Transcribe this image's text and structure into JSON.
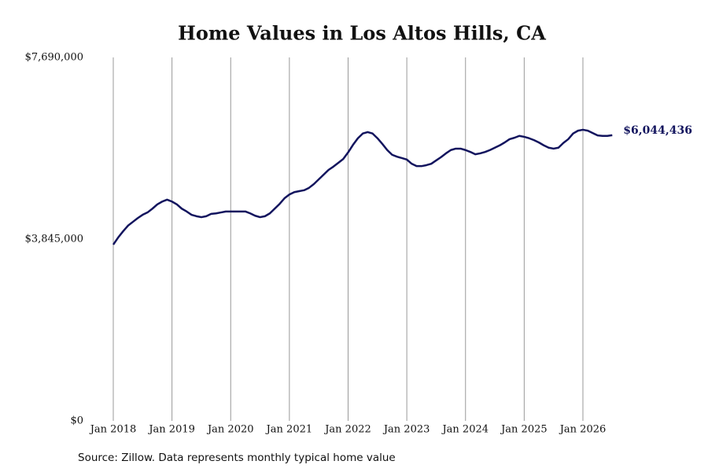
{
  "chart_data": {
    "type": "line",
    "title": "Home Values in Los Altos Hills, CA",
    "source": "Source: Zillow. Data represents monthly typical home value",
    "x": [
      "2018-01",
      "2018-02",
      "2018-03",
      "2018-04",
      "2018-05",
      "2018-06",
      "2018-07",
      "2018-08",
      "2018-09",
      "2018-10",
      "2018-11",
      "2018-12",
      "2019-01",
      "2019-02",
      "2019-03",
      "2019-04",
      "2019-05",
      "2019-06",
      "2019-07",
      "2019-08",
      "2019-09",
      "2019-10",
      "2019-11",
      "2019-12",
      "2020-01",
      "2020-02",
      "2020-03",
      "2020-04",
      "2020-05",
      "2020-06",
      "2020-07",
      "2020-08",
      "2020-09",
      "2020-10",
      "2020-11",
      "2020-12",
      "2021-01",
      "2021-02",
      "2021-03",
      "2021-04",
      "2021-05",
      "2021-06",
      "2021-07",
      "2021-08",
      "2021-09",
      "2021-10",
      "2021-11",
      "2021-12",
      "2022-01",
      "2022-02",
      "2022-03",
      "2022-04",
      "2022-05",
      "2022-06",
      "2022-07",
      "2022-08",
      "2022-09",
      "2022-10",
      "2022-11",
      "2022-12",
      "2023-01",
      "2023-02",
      "2023-03",
      "2023-04",
      "2023-05",
      "2023-06",
      "2023-07",
      "2023-08",
      "2023-09",
      "2023-10",
      "2023-11",
      "2023-12",
      "2024-01",
      "2024-02",
      "2024-03",
      "2024-04",
      "2024-05",
      "2024-06",
      "2024-07",
      "2024-08",
      "2024-09",
      "2024-10",
      "2024-11",
      "2024-12",
      "2025-01",
      "2025-02",
      "2025-03",
      "2025-04",
      "2025-05",
      "2025-06",
      "2025-07",
      "2025-08",
      "2025-09",
      "2025-10",
      "2025-11",
      "2025-12",
      "2026-01",
      "2026-02",
      "2026-03",
      "2026-04",
      "2026-05",
      "2026-06",
      "2026-07"
    ],
    "series": [
      {
        "name": "Home value",
        "color": "#12145e",
        "values": [
          3730000,
          3880000,
          4010000,
          4130000,
          4210000,
          4290000,
          4360000,
          4410000,
          4490000,
          4580000,
          4640000,
          4680000,
          4640000,
          4580000,
          4490000,
          4430000,
          4360000,
          4330000,
          4310000,
          4330000,
          4380000,
          4390000,
          4410000,
          4430000,
          4430000,
          4430000,
          4430000,
          4430000,
          4390000,
          4340000,
          4310000,
          4330000,
          4390000,
          4490000,
          4590000,
          4710000,
          4790000,
          4840000,
          4860000,
          4880000,
          4930000,
          5010000,
          5110000,
          5210000,
          5310000,
          5380000,
          5460000,
          5540000,
          5680000,
          5840000,
          5980000,
          6080000,
          6110000,
          6080000,
          5980000,
          5860000,
          5730000,
          5630000,
          5590000,
          5560000,
          5530000,
          5440000,
          5390000,
          5390000,
          5410000,
          5440000,
          5510000,
          5580000,
          5660000,
          5730000,
          5760000,
          5760000,
          5730000,
          5690000,
          5640000,
          5660000,
          5690000,
          5730000,
          5780000,
          5830000,
          5890000,
          5960000,
          5990000,
          6030000,
          6010000,
          5980000,
          5940000,
          5890000,
          5830000,
          5780000,
          5760000,
          5780000,
          5880000,
          5960000,
          6080000,
          6140000,
          6160000,
          6140000,
          6090000,
          6040000,
          6030000,
          6030000,
          6044436
        ],
        "value_labels": [
          null,
          null,
          null,
          null,
          null,
          null,
          null,
          null,
          null,
          null,
          null,
          null,
          null,
          null,
          null,
          null,
          null,
          null,
          null,
          null,
          null,
          null,
          null,
          null,
          null,
          null,
          null,
          null,
          null,
          null,
          null,
          null,
          null,
          null,
          null,
          null,
          null,
          null,
          null,
          null,
          null,
          null,
          null,
          null,
          null,
          null,
          null,
          null,
          null,
          null,
          null,
          null,
          null,
          null,
          null,
          null,
          null,
          null,
          null,
          null,
          null,
          null,
          null,
          null,
          null,
          null,
          null,
          null,
          null,
          null,
          null,
          null,
          null,
          null,
          null,
          null,
          null,
          null,
          null,
          null,
          null,
          null,
          null,
          null,
          null,
          null,
          null,
          null,
          null,
          null,
          null,
          null,
          null,
          null,
          null,
          null,
          null,
          null,
          null,
          null,
          null,
          null,
          "$6,044,436"
        ]
      }
    ],
    "xlim": [
      "2018-01",
      "2026-07"
    ],
    "xticks": [
      {
        "value": "2018-01",
        "label": "Jan 2018"
      },
      {
        "value": "2019-01",
        "label": "Jan 2019"
      },
      {
        "value": "2020-01",
        "label": "Jan 2020"
      },
      {
        "value": "2021-01",
        "label": "Jan 2021"
      },
      {
        "value": "2022-01",
        "label": "Jan 2022"
      },
      {
        "value": "2023-01",
        "label": "Jan 2023"
      },
      {
        "value": "2024-01",
        "label": "Jan 2024"
      },
      {
        "value": "2025-01",
        "label": "Jan 2025"
      },
      {
        "value": "2026-01",
        "label": "Jan 2026"
      }
    ],
    "ylim": [
      0,
      7690000
    ],
    "yticks": [
      {
        "value": 0,
        "label": "$0"
      },
      {
        "value": 3845000,
        "label": "$3,845,000"
      },
      {
        "value": 7690000,
        "label": "$7,690,000"
      }
    ],
    "grid": "x"
  }
}
